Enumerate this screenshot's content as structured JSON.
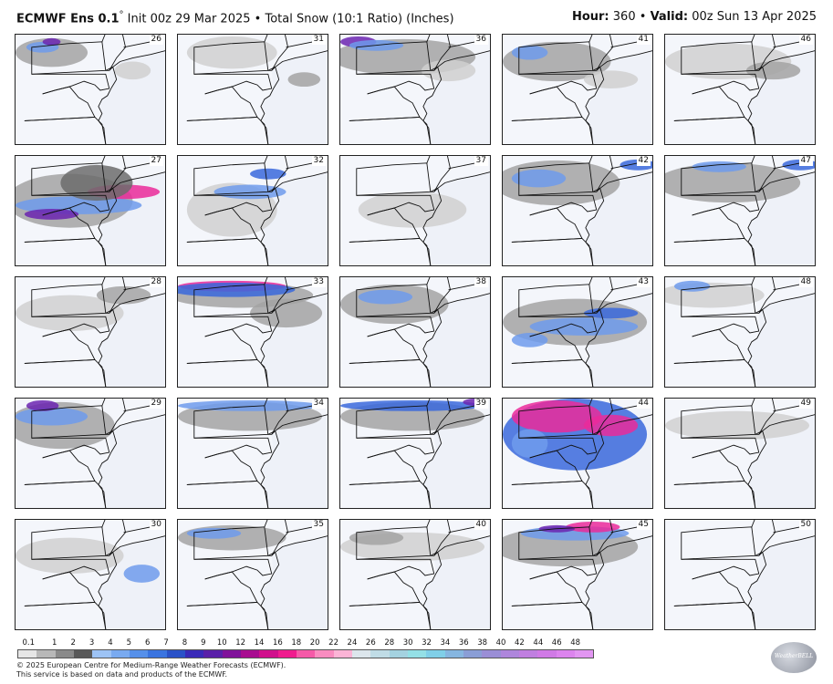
{
  "header": {
    "model": "ECMWF Ens 0.1",
    "deg": "°",
    "init": "Init 00z 29 Mar 2025",
    "bullet": "•",
    "product": "Total Snow (10:1 Ratio) (Inches)",
    "hour_label": "Hour:",
    "hour_value": "360",
    "valid_label": "Valid:",
    "valid_value": "00z Sun 13 Apr 2025"
  },
  "members": [
    [
      "26",
      "31",
      "36",
      "41",
      "46"
    ],
    [
      "27",
      "32",
      "37",
      "42",
      "47"
    ],
    [
      "28",
      "33",
      "38",
      "43",
      "48"
    ],
    [
      "29",
      "34",
      "39",
      "44",
      "49"
    ],
    [
      "30",
      "35",
      "40",
      "45",
      "50"
    ]
  ],
  "colorbar": {
    "labels": [
      "0.1",
      "1",
      "2",
      "3",
      "4",
      "5",
      "6",
      "7",
      "8",
      "9",
      "10",
      "12",
      "14",
      "16",
      "18",
      "20",
      "22",
      "24",
      "26",
      "28",
      "30",
      "32",
      "34",
      "36",
      "38",
      "40",
      "42",
      "44",
      "46",
      "48"
    ],
    "colors": [
      "#e6e6e6",
      "#b8b8b8",
      "#8a8a8a",
      "#595959",
      "#9dc3f5",
      "#79aaf0",
      "#5690ea",
      "#3a74e0",
      "#2a52c8",
      "#3a2ab8",
      "#5a20a8",
      "#80129a",
      "#a80d90",
      "#d0108c",
      "#f01c8e",
      "#f55aa8",
      "#f98cc0",
      "#fbb4d6",
      "#dce6ec",
      "#c0dce6",
      "#a4d2e0",
      "#94e0e6",
      "#80cfe8",
      "#86b6e0",
      "#8a9ed6",
      "#9a8ed6",
      "#ae86dc",
      "#c07fe0",
      "#d07ae6",
      "#dc84ee",
      "#e296f2"
    ]
  },
  "footer": {
    "line1": "© 2025 European Centre for Medium-Range Weather Forecasts (ECMWF).",
    "line2": "This service is based on data and products of the ECMWF."
  },
  "logo": {
    "text": "WeatherBELL"
  }
}
